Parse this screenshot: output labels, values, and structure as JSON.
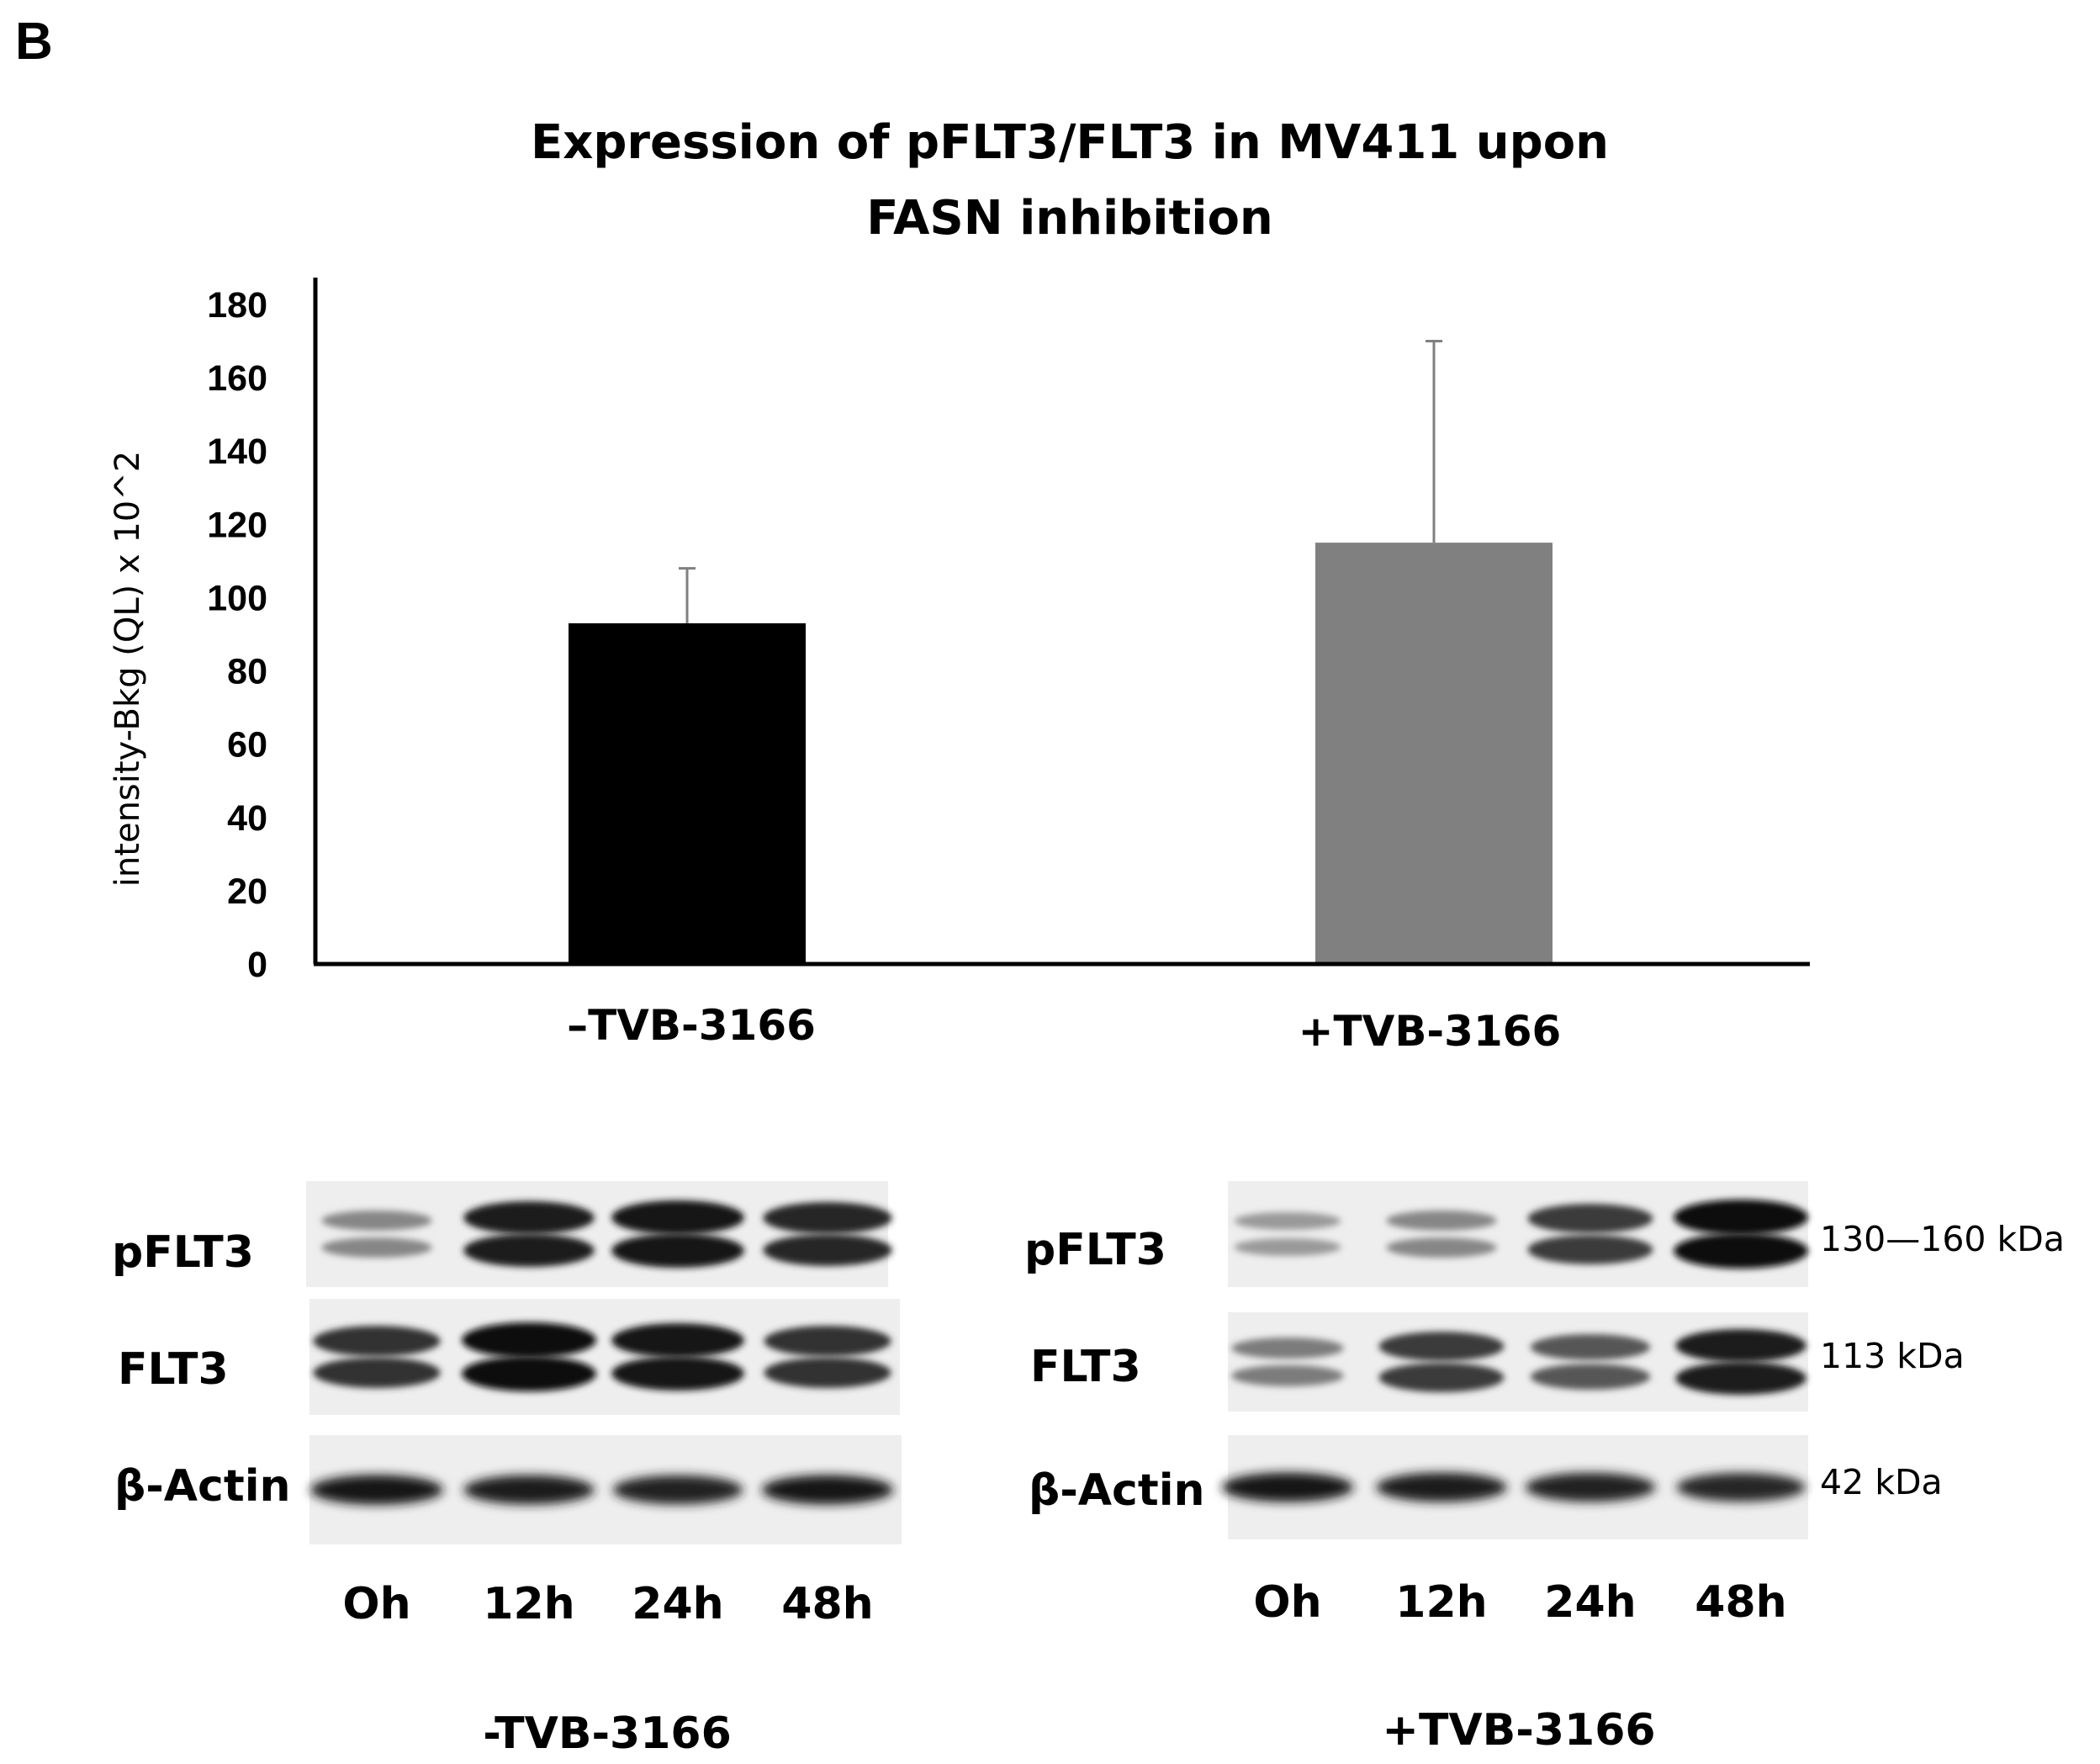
{
  "panel_label": "B",
  "chart_data": {
    "type": "bar",
    "title_lines": [
      "Expression of pFLT3/FLT3 in MV411 upon",
      "FASN inhibition"
    ],
    "ylabel": "intensity-Bkg (QL) x 10^2",
    "xlabel": "",
    "ylim": [
      0,
      180
    ],
    "yticks": [
      0,
      20,
      40,
      60,
      80,
      100,
      120,
      140,
      160,
      180
    ],
    "categories": [
      "–TVB-3166",
      "+TVB-3166"
    ],
    "values": [
      93,
      115
    ],
    "errors": [
      15,
      55
    ],
    "colors": [
      "#000000",
      "#808080"
    ],
    "grid": false
  },
  "blots": {
    "row_labels": [
      "pFLT3",
      "FLT3",
      "β-Actin"
    ],
    "lanes": [
      "Oh",
      "12h",
      "24h",
      "48h"
    ],
    "left_treatment": "-TVB-3166",
    "right_treatment": "+TVB-3166",
    "sizes": [
      "130—160 kDa",
      "113 kDa",
      "42 kDa"
    ],
    "left_band_intensity": {
      "pFLT3": [
        0.35,
        0.9,
        0.95,
        0.85
      ],
      "FLT3": [
        0.8,
        1.0,
        0.95,
        0.8
      ],
      "actin": [
        0.95,
        0.9,
        0.88,
        0.92
      ]
    },
    "right_band_intensity": {
      "pFLT3": [
        0.25,
        0.35,
        0.75,
        1.0
      ],
      "FLT3": [
        0.4,
        0.75,
        0.6,
        0.9
      ],
      "actin": [
        0.92,
        0.9,
        0.88,
        0.85
      ]
    }
  }
}
